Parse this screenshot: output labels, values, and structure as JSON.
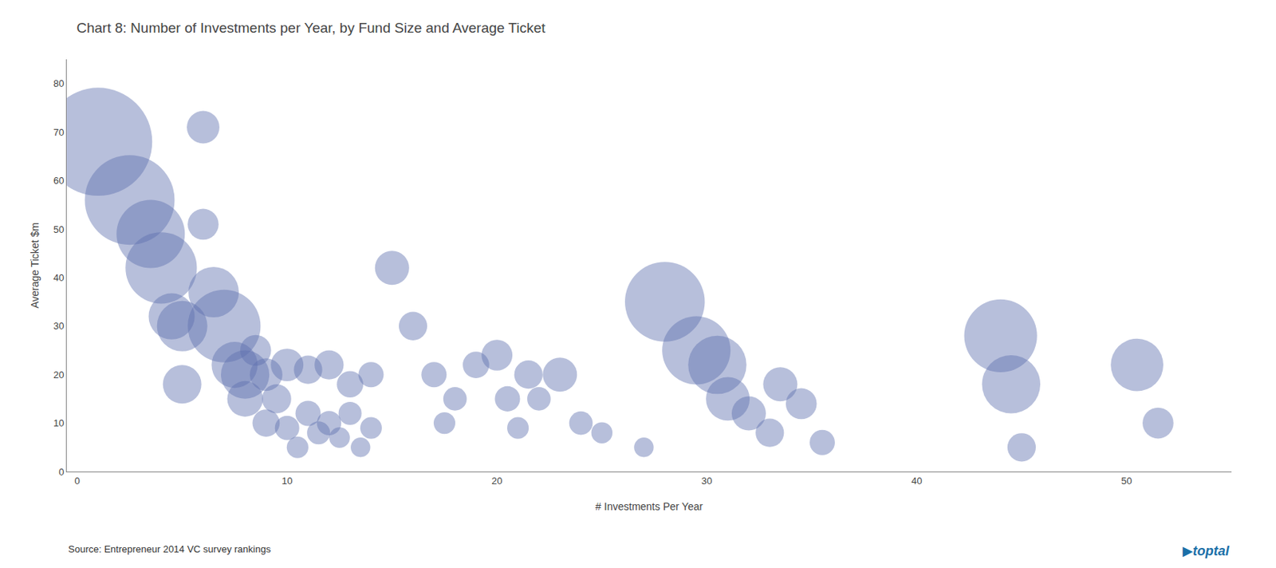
{
  "chart_data": {
    "type": "bubble",
    "title": "Chart 8: Number of Investments per Year, by Fund Size and Average Ticket",
    "x_label": "# Investments Per Year",
    "y_label": "Average Ticket $m",
    "annotations": [
      "Source: Entrepreneur 2014 VC survey rankings",
      "▶toptal"
    ],
    "color": "#6070b0",
    "grid": false,
    "xlim": [
      -0.5,
      55
    ],
    "ylim": [
      0,
      85
    ],
    "xticks": [
      0,
      10,
      20,
      30,
      40,
      50
    ],
    "yticks": [
      0,
      10,
      20,
      30,
      40,
      50,
      60,
      70,
      80
    ],
    "x": [
      1,
      2.5,
      3.5,
      4.0,
      4.5,
      5.0,
      5.0,
      6.0,
      6.0,
      6.5,
      7.0,
      7.5,
      8.0,
      8.0,
      8.5,
      9.0,
      9.0,
      9.5,
      10.0,
      10.0,
      10.5,
      11.0,
      11.0,
      11.5,
      12.0,
      12.0,
      12.5,
      13.0,
      13.0,
      13.5,
      14.0,
      14.0,
      15.0,
      16.0,
      17.0,
      17.5,
      18.0,
      19.0,
      20.0,
      20.5,
      21.0,
      21.5,
      22.0,
      23.0,
      24.0,
      25.0,
      27.0,
      28.0,
      29.5,
      30.5,
      31.0,
      32.0,
      33.0,
      33.5,
      34.5,
      35.5,
      44.0,
      44.5,
      45.0,
      50.5,
      51.5
    ],
    "values": [
      68,
      56,
      49,
      42,
      32,
      30,
      18,
      71,
      51,
      37,
      30,
      22,
      20,
      15,
      25,
      20,
      10,
      15,
      22,
      9,
      5,
      21,
      12,
      8,
      22,
      10,
      7,
      18,
      12,
      5,
      20,
      9,
      42,
      30,
      20,
      10,
      15,
      22,
      24,
      15,
      9,
      20,
      15,
      20,
      10,
      8,
      5,
      35,
      25,
      22,
      15,
      12,
      8,
      18,
      14,
      6,
      28,
      18,
      5,
      22,
      10
    ],
    "sizes": [
      5500,
      3800,
      2200,
      2400,
      1000,
      1200,
      700,
      500,
      450,
      1200,
      2500,
      1000,
      1100,
      600,
      450,
      500,
      350,
      400,
      500,
      280,
      220,
      380,
      300,
      250,
      400,
      280,
      200,
      330,
      250,
      180,
      300,
      220,
      550,
      380,
      300,
      220,
      260,
      330,
      450,
      300,
      220,
      380,
      260,
      550,
      260,
      210,
      180,
      3000,
      2200,
      1600,
      900,
      550,
      380,
      550,
      450,
      300,
      2500,
      1600,
      380,
      1300,
      450
    ]
  }
}
